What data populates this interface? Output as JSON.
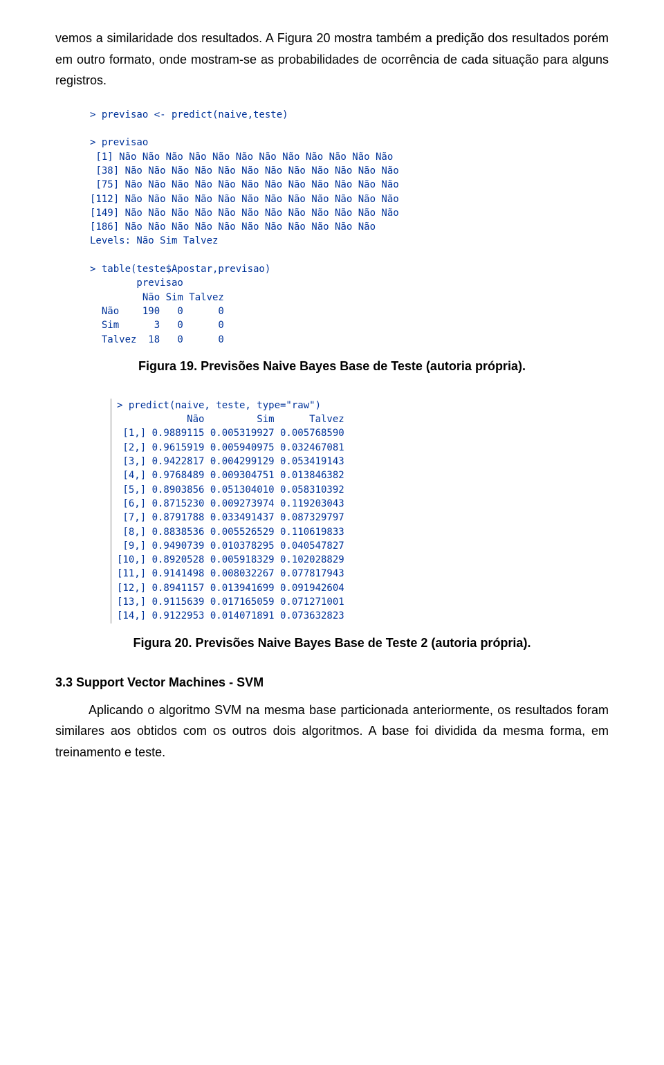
{
  "para1_a": "vemos a similaridade dos resultados. A Figura ",
  "para1_fig1": "20",
  "para1_b": " mostra também a predição dos resultados porém em outro formato, onde mostram-se as probabilidades de ocorrência de cada situação para alguns registros.",
  "console1": "> previsao <- predict(naive,teste)\n\n> previsao\n [1] Não Não Não Não Não Não Não Não Não Não Não Não\n [38] Não Não Não Não Não Não Não Não Não Não Não Não\n [75] Não Não Não Não Não Não Não Não Não Não Não Não\n[112] Não Não Não Não Não Não Não Não Não Não Não Não\n[149] Não Não Não Não Não Não Não Não Não Não Não Não\n[186] Não Não Não Não Não Não Não Não Não Não Não\nLevels: Não Sim Talvez\n\n> table(teste$Apostar,previsao)\n        previsao\n         Não Sim Talvez\n  Não    190   0      0\n  Sim      3   0      0\n  Talvez  18   0      0",
  "caption1": "Figura 19. Previsões Naive Bayes Base de Teste (autoria própria).",
  "console2": "> predict(naive, teste, type=\"raw\")\n            Não         Sim      Talvez\n [1,] 0.9889115 0.005319927 0.005768590\n [2,] 0.9615919 0.005940975 0.032467081\n [3,] 0.9422817 0.004299129 0.053419143\n [4,] 0.9768489 0.009304751 0.013846382\n [5,] 0.8903856 0.051304010 0.058310392\n [6,] 0.8715230 0.009273974 0.119203043\n [7,] 0.8791788 0.033491437 0.087329797\n [8,] 0.8838536 0.005526529 0.110619833\n [9,] 0.9490739 0.010378295 0.040547827\n[10,] 0.8920528 0.005918329 0.102028829\n[11,] 0.9141498 0.008032267 0.077817943\n[12,] 0.8941157 0.013941699 0.091942604\n[13,] 0.9115639 0.017165059 0.071271001\n[14,] 0.9122953 0.014071891 0.073632823",
  "caption2": "Figura 20. Previsões Naive Bayes Base de Teste 2 (autoria própria).",
  "section_heading": "3.3 Support Vector Machines - SVM",
  "para2": "Aplicando o algoritmo SVM na mesma base particionada anteriormente, os resultados foram similares aos obtidos com os outros dois algoritmos. A base foi dividida da mesma forma, em treinamento e teste."
}
